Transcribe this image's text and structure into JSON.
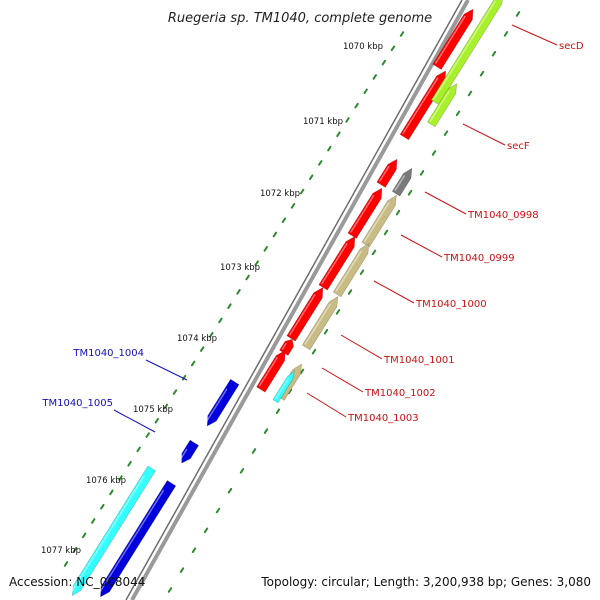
{
  "title": "Ruegeria sp. TM1040, complete genome",
  "footer": {
    "accession": "Accession: NC_008044",
    "summary": "Topology: circular; Length: 3,200,938 bp; Genes: 3,080"
  },
  "colors": {
    "backbone": "#8a8a8a",
    "tick": "#2e8b2e",
    "label_forward": "#cc1111",
    "label_reverse": "#1111bb",
    "red": "#ff0000",
    "lime": "#a8f02a",
    "olive": "#c8bc84",
    "gray": "#7a7a7a",
    "cyan": "#33ffff",
    "blue": "#0000dd"
  },
  "ticks_kbp": [
    {
      "label": "1070 kbp"
    },
    {
      "label": "1071 kbp"
    },
    {
      "label": "1072 kbp"
    },
    {
      "label": "1073 kbp"
    },
    {
      "label": "1074 kbp"
    },
    {
      "label": "1075 kbp"
    },
    {
      "label": "1076 kbp"
    },
    {
      "label": "1077 kbp"
    }
  ],
  "gene_labels": [
    {
      "name": "secD",
      "strand": "forward"
    },
    {
      "name": "secF",
      "strand": "forward"
    },
    {
      "name": "TM1040_0998",
      "strand": "forward"
    },
    {
      "name": "TM1040_0999",
      "strand": "forward"
    },
    {
      "name": "TM1040_1000",
      "strand": "forward"
    },
    {
      "name": "TM1040_1001",
      "strand": "forward"
    },
    {
      "name": "TM1040_1002",
      "strand": "forward"
    },
    {
      "name": "TM1040_1003",
      "strand": "forward"
    },
    {
      "name": "TM1040_1004",
      "strand": "reverse"
    },
    {
      "name": "TM1040_1005",
      "strand": "reverse"
    }
  ]
}
